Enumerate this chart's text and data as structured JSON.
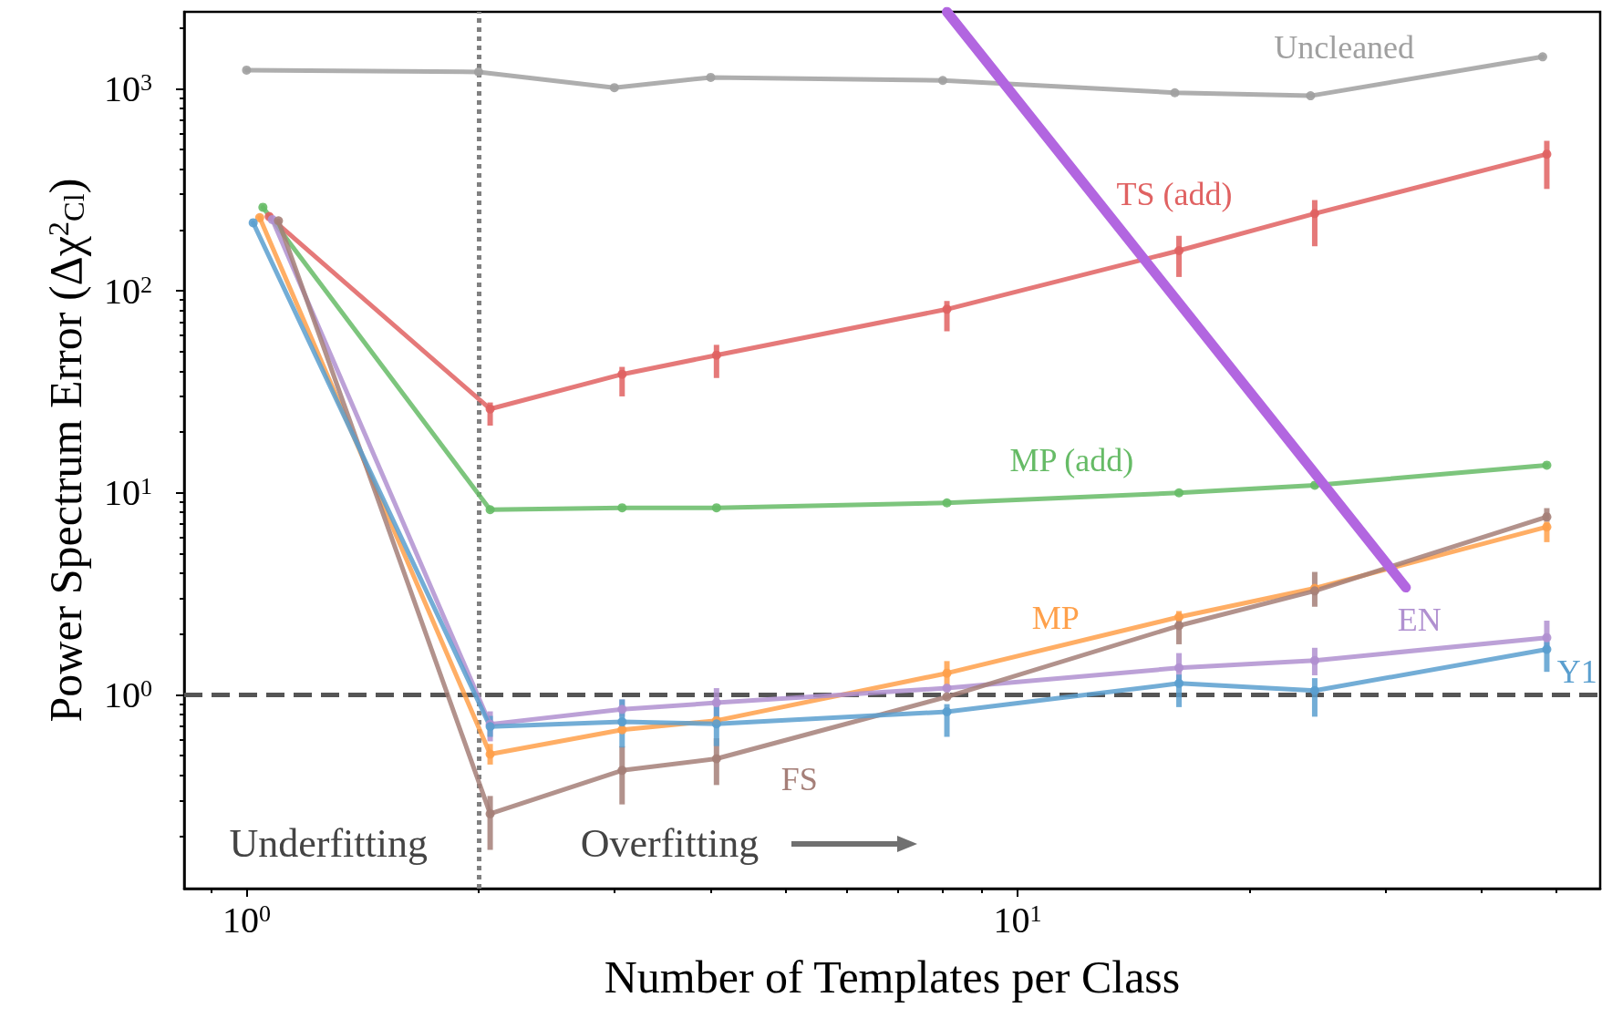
{
  "chart_data": {
    "type": "line",
    "xlabel": "Number of Templates per Class",
    "ylabel": "Power Spectrum Error (Δχ$^{2}$$_{Cl}$)",
    "log": "xy",
    "marker": "circle",
    "line_style": "solid",
    "grid": false,
    "legend": false,
    "xlim": [
      0.83,
      57
    ],
    "ylim": [
      0.11,
      2400
    ],
    "xticks": [
      {
        "value": 0.9,
        "label": null
      },
      {
        "value": 1,
        "label": "10$^{0}$"
      },
      {
        "value": 2,
        "label": null
      },
      {
        "value": 3,
        "label": null
      },
      {
        "value": 4,
        "label": null
      },
      {
        "value": 5,
        "label": null
      },
      {
        "value": 6,
        "label": null
      },
      {
        "value": 7,
        "label": null
      },
      {
        "value": 8,
        "label": null
      },
      {
        "value": 9,
        "label": null
      },
      {
        "value": 10,
        "label": "10$^{1}$"
      },
      {
        "value": 20,
        "label": null
      },
      {
        "value": 30,
        "label": null
      },
      {
        "value": 40,
        "label": null
      },
      {
        "value": 50,
        "label": null
      }
    ],
    "yticks": [
      {
        "value": 0.2,
        "label": null
      },
      {
        "value": 0.3,
        "label": null
      },
      {
        "value": 0.4,
        "label": null
      },
      {
        "value": 0.5,
        "label": null
      },
      {
        "value": 0.6,
        "label": null
      },
      {
        "value": 0.7,
        "label": null
      },
      {
        "value": 0.8,
        "label": null
      },
      {
        "value": 0.9,
        "label": null
      },
      {
        "value": 1,
        "label": "10$^{0}$"
      },
      {
        "value": 2,
        "label": null
      },
      {
        "value": 3,
        "label": null
      },
      {
        "value": 4,
        "label": null
      },
      {
        "value": 5,
        "label": null
      },
      {
        "value": 6,
        "label": null
      },
      {
        "value": 7,
        "label": null
      },
      {
        "value": 8,
        "label": null
      },
      {
        "value": 9,
        "label": null
      },
      {
        "value": 10,
        "label": "10$^{1}$"
      },
      {
        "value": 20,
        "label": null
      },
      {
        "value": 30,
        "label": null
      },
      {
        "value": 40,
        "label": null
      },
      {
        "value": 50,
        "label": null
      },
      {
        "value": 60,
        "label": null
      },
      {
        "value": 70,
        "label": null
      },
      {
        "value": 80,
        "label": null
      },
      {
        "value": 90,
        "label": null
      },
      {
        "value": 100,
        "label": "10$^{2}$"
      },
      {
        "value": 200,
        "label": null
      },
      {
        "value": 300,
        "label": null
      },
      {
        "value": 400,
        "label": null
      },
      {
        "value": 500,
        "label": null
      },
      {
        "value": 600,
        "label": null
      },
      {
        "value": 700,
        "label": null
      },
      {
        "value": 800,
        "label": null
      },
      {
        "value": 900,
        "label": null
      },
      {
        "value": 1000,
        "label": "10$^{3}$"
      },
      {
        "value": 2000,
        "label": null
      }
    ],
    "ref_lines": [
      {
        "axis": "y",
        "value": 1,
        "color": "#555555",
        "line_style": "dashed"
      },
      {
        "axis": "x",
        "value": 2,
        "color": "#808080",
        "line_style": "dotted"
      }
    ],
    "annotations": [
      "Underfitting",
      "Overfitting"
    ],
    "series": [
      {
        "name": "Uncleaned",
        "color": "#a0a0a0",
        "x": [
          1,
          2,
          3,
          4,
          8,
          16,
          24,
          48
        ],
        "values": [
          1236,
          1210,
          1012,
          1137,
          1099,
          955,
          922,
          1438
        ]
      },
      {
        "name": "TS (add)",
        "color": "#e06262",
        "x": [
          1.07,
          2.07,
          3.07,
          4.07,
          8.1,
          16.2,
          24.3,
          48.6
        ],
        "values": [
          233,
          26,
          38.6,
          48,
          81,
          158,
          241,
          474
        ],
        "errors": [
          null,
          [
            21.5,
            28
          ],
          [
            30,
            42
          ],
          [
            37,
            54
          ],
          [
            63,
            89
          ],
          [
            117,
            187
          ],
          [
            166,
            281
          ],
          [
            319,
            552
          ]
        ]
      },
      {
        "name": "MP (add)",
        "color": "#66bb66",
        "x": [
          1.05,
          2.07,
          3.07,
          4.07,
          8.1,
          16.2,
          24.3,
          48.6
        ],
        "values": [
          259,
          8.25,
          8.43,
          8.43,
          8.92,
          10.0,
          10.9,
          13.7
        ]
      },
      {
        "name": "MP",
        "color": "#ffa04a",
        "x": [
          1.04,
          2.07,
          3.07,
          4.07,
          8.1,
          16.2,
          24.3,
          48.6
        ],
        "values": [
          230,
          0.509,
          0.672,
          0.746,
          1.28,
          2.43,
          3.37,
          6.78
        ],
        "errors": [
          null,
          [
            0.452,
            0.572
          ],
          null,
          null,
          [
            1.04,
            1.47
          ],
          [
            2.25,
            2.6
          ],
          null,
          [
            5.7,
            7.2
          ]
        ]
      },
      {
        "name": "EN",
        "color": "#b090d0",
        "x": [
          1.08,
          2.07,
          3.07,
          4.07,
          8.1,
          16.2,
          24.3,
          48.6
        ],
        "values": [
          225,
          0.716,
          0.848,
          0.914,
          1.08,
          1.36,
          1.48,
          1.92
        ],
        "errors": [
          null,
          [
            0.589,
            0.829
          ],
          [
            0.78,
            0.949
          ],
          [
            0.746,
            1.08
          ],
          null,
          [
            1.17,
            1.61
          ],
          [
            1.25,
            1.71
          ],
          [
            1.63,
            2.33
          ]
        ]
      },
      {
        "name": "FS",
        "color": "#a57f78",
        "x": [
          1.1,
          2.07,
          3.07,
          4.07,
          8.1,
          16.2,
          24.3,
          48.6
        ],
        "values": [
          222,
          0.258,
          0.423,
          0.483,
          0.978,
          2.2,
          3.27,
          7.6
        ],
        "errors": [
          null,
          [
            0.171,
            0.316
          ],
          [
            0.287,
            0.557
          ],
          [
            0.358,
            0.61
          ],
          null,
          [
            1.78,
            2.43
          ],
          [
            2.73,
            4.06
          ],
          [
            7.2,
            8.4
          ]
        ]
      },
      {
        "name": "Y1",
        "color": "#5a9fcf",
        "x": [
          1.02,
          2.07,
          3.07,
          4.07,
          8.1,
          16.2,
          24.3,
          48.6
        ],
        "values": [
          217,
          0.697,
          0.735,
          0.719,
          0.825,
          1.14,
          1.05,
          1.68
        ],
        "errors": [
          null,
          [
            0.62,
            0.787
          ],
          [
            0.549,
            0.949
          ],
          [
            0.558,
            0.875
          ],
          [
            0.62,
            0.9
          ],
          [
            0.87,
            1.26
          ],
          [
            0.78,
            1.21
          ],
          [
            1.3,
            1.83
          ]
        ]
      },
      {
        "color": "#b266e0",
        "marker": "none",
        "x": [
          8.1,
          31.9
        ],
        "values": [
          2400,
          3.4
        ]
      }
    ]
  }
}
